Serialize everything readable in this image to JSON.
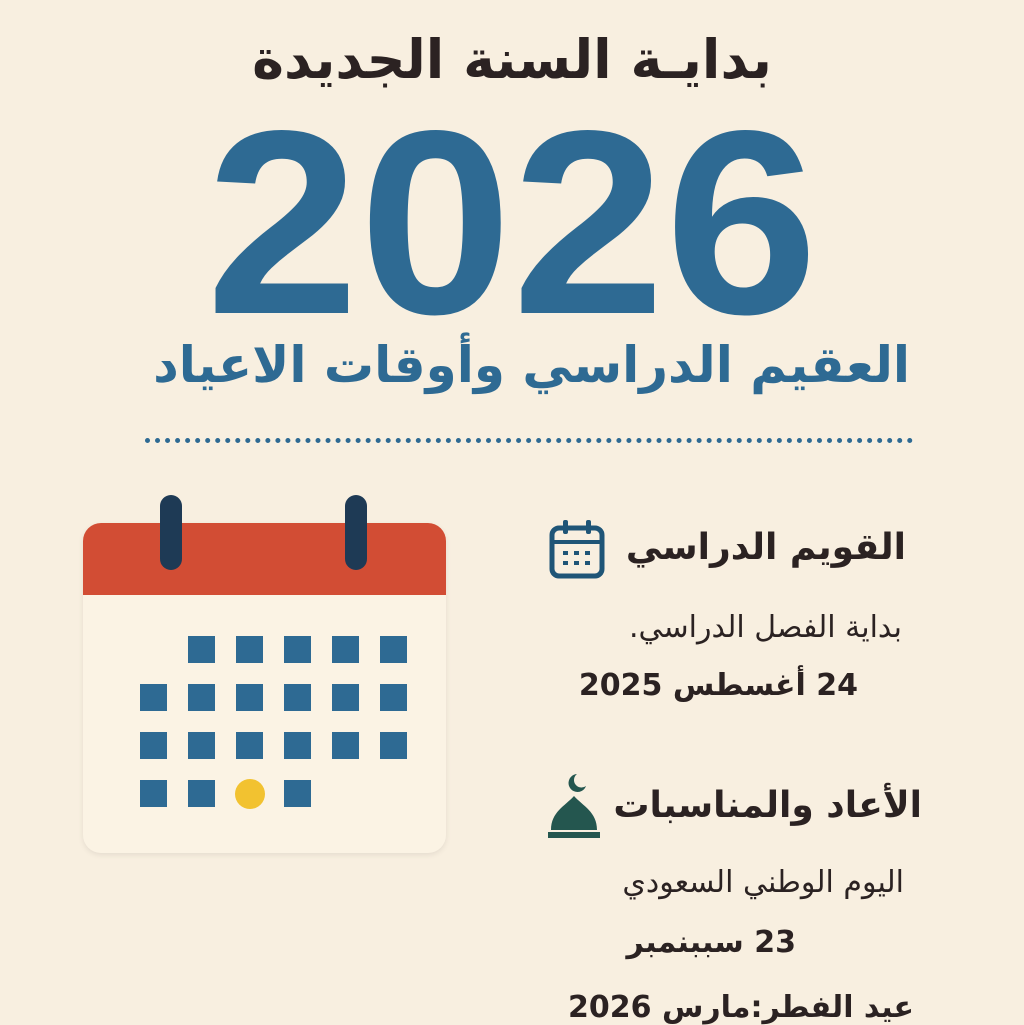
{
  "title": "بدايـة السنة الجديدة",
  "year": "2026",
  "subtitle": "العقيم الدراسي وأوقات الاعياد",
  "colors": {
    "background": "#f8efe0",
    "accent_blue": "#2e6a93",
    "calendar_red": "#d24d34",
    "highlight_yellow": "#f2c230",
    "text_dark": "#2b2222",
    "mosque_green": "#24564f"
  },
  "sections": [
    {
      "icon": "calendar-icon",
      "heading": "القويم الدراسي",
      "lines": [
        "بداية الفصل الدراسي.",
        "24 أغسطس 2025"
      ]
    },
    {
      "icon": "mosque-dome-icon",
      "heading": "الأعاد والمناسبات",
      "lines": [
        "اليوم الوطني السعودي",
        "23 سببنمبر",
        "عيد الفطر:مارس 2026"
      ]
    }
  ],
  "illustration": {
    "icon": "calendar-illustration",
    "highlighted_day": "row 4, column 3"
  }
}
